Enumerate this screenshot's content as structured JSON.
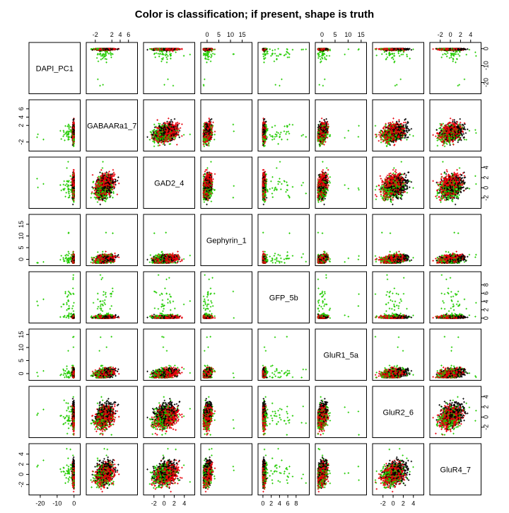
{
  "chart_data": {
    "type": "scatter",
    "title": "Color is classification; if present, shape is truth",
    "variables": [
      "DAPI_PC1",
      "GABAARa1_7",
      "GAD2_4",
      "Gephyrin_1",
      "GFP_5b",
      "GluR1_5a",
      "GluR2_6",
      "GluR4_7"
    ],
    "ranges": [
      [
        -25,
        2
      ],
      [
        -3.5,
        7.5
      ],
      [
        -3.5,
        5.5
      ],
      [
        -1.5,
        18
      ],
      [
        -0.5,
        10.5
      ],
      [
        -1.5,
        16
      ],
      [
        -3.5,
        5.5
      ],
      [
        -3.5,
        5.5
      ]
    ],
    "ticks": [
      [
        -20,
        -10,
        0
      ],
      [
        -2,
        2,
        4,
        6
      ],
      [
        -2,
        0,
        2,
        4
      ],
      [
        0,
        5,
        10,
        15
      ],
      [
        0,
        2,
        4,
        6,
        8
      ],
      [
        0,
        5,
        10,
        15
      ],
      [
        -2,
        0,
        2,
        4
      ],
      [
        -2,
        0,
        2,
        4
      ]
    ],
    "classes": [
      {
        "color": "#000000",
        "n": 380
      },
      {
        "color": "#e8000b",
        "n": 520
      },
      {
        "color": "#22cc00",
        "n": 260
      }
    ],
    "marker": "plus",
    "matrix": "pairs (upper & lower panels)"
  }
}
